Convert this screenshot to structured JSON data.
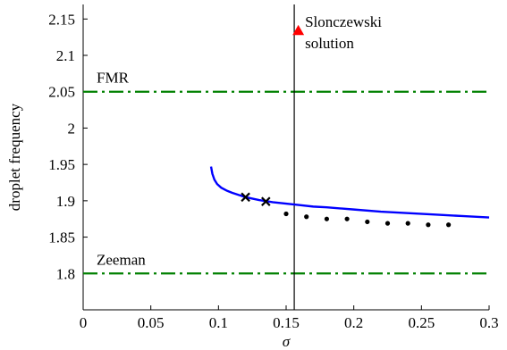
{
  "chart_data": {
    "type": "line",
    "title": "",
    "xlabel": "σ",
    "ylabel": "droplet frequency",
    "xlim": [
      0,
      0.3
    ],
    "ylim": [
      1.75,
      2.17
    ],
    "x_ticks": [
      "0",
      "0.05",
      "0.1",
      "0.15",
      "0.2",
      "0.25",
      "0.3"
    ],
    "y_ticks": [
      "1.8",
      "1.85",
      "1.9",
      "1.95",
      "2",
      "2.05",
      "2.1",
      "2.15"
    ],
    "grid": false,
    "series": [
      {
        "kind": "line",
        "color": "#0000ff",
        "x": [
          0.0945,
          0.0955,
          0.097,
          0.099,
          0.102,
          0.106,
          0.11,
          0.115,
          0.12,
          0.125,
          0.13,
          0.14,
          0.15,
          0.16,
          0.17,
          0.18,
          0.2,
          0.22,
          0.24,
          0.26,
          0.28,
          0.3
        ],
        "y": [
          1.947,
          1.937,
          1.929,
          1.923,
          1.918,
          1.914,
          1.911,
          1.908,
          1.905,
          1.903,
          1.901,
          1.898,
          1.896,
          1.894,
          1.892,
          1.891,
          1.888,
          1.885,
          1.883,
          1.881,
          1.879,
          1.877
        ]
      },
      {
        "kind": "scatter-x",
        "color": "#000000",
        "x": [
          0.12,
          0.135
        ],
        "y": [
          1.905,
          1.899
        ]
      },
      {
        "kind": "scatter-dot",
        "color": "#000000",
        "x": [
          0.15,
          0.165,
          0.18,
          0.195,
          0.21,
          0.225,
          0.24,
          0.255,
          0.27
        ],
        "y": [
          1.882,
          1.878,
          1.875,
          1.875,
          1.871,
          1.869,
          1.869,
          1.867,
          1.867
        ]
      }
    ],
    "hlines": [
      {
        "y": 2.05,
        "label": "FMR",
        "color": "#008000",
        "style": "dashdot"
      },
      {
        "y": 1.8,
        "label": "Zeeman",
        "color": "#008000",
        "style": "dashdot"
      }
    ],
    "vline": {
      "x": 0.156,
      "color": "#000000"
    },
    "marker": {
      "x": 0.159,
      "y": 2.134,
      "color": "#ff0000",
      "shape": "triangle",
      "label_line1": "Slonczewski",
      "label_line2": "solution"
    }
  }
}
